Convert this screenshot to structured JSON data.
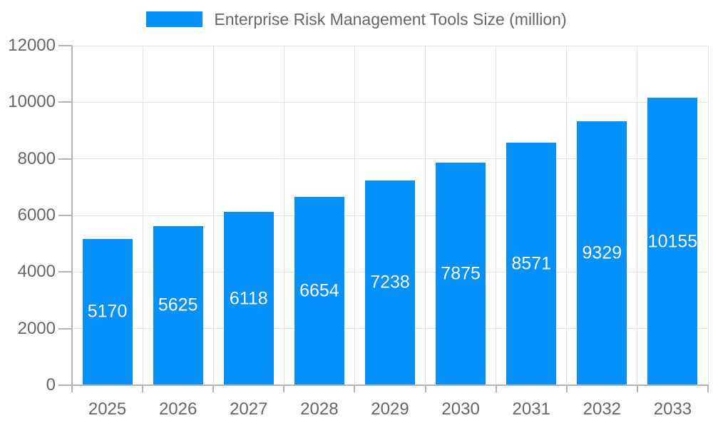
{
  "chart_data": {
    "type": "bar",
    "title": "Enterprise Risk Management Tools Size (million)",
    "categories": [
      "2025",
      "2026",
      "2027",
      "2028",
      "2029",
      "2030",
      "2031",
      "2032",
      "2033"
    ],
    "values": [
      5170,
      5625,
      6118,
      6654,
      7238,
      7875,
      8571,
      9329,
      10155
    ],
    "xlabel": "",
    "ylabel": "",
    "ylim": [
      0,
      12000
    ],
    "yticks": [
      0,
      2000,
      4000,
      6000,
      8000,
      10000,
      12000
    ],
    "grid": "horizontal and vertical",
    "legend_position": "top-center",
    "colors": {
      "bar": "#0591F9",
      "value_label": "#ffffff",
      "axis_text": "#666666",
      "grid_line": "#e3e3e3",
      "axis_line": "#b3b3b3",
      "background": "#ffffff"
    }
  }
}
